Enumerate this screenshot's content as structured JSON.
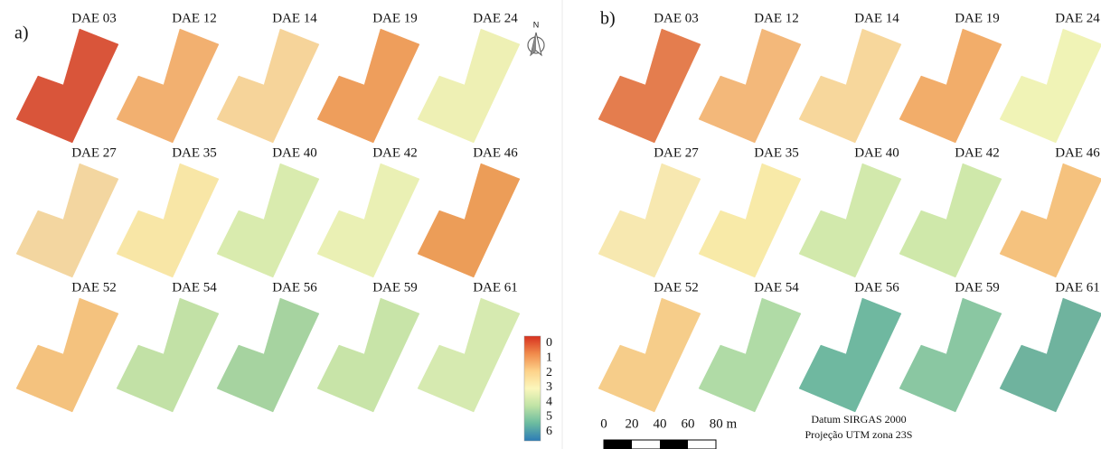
{
  "panels": [
    {
      "label": "a)",
      "maps": [
        {
          "label": "DAE 03",
          "color": "#d9553a"
        },
        {
          "label": "DAE 12",
          "color": "#f2b070"
        },
        {
          "label": "DAE 14",
          "color": "#f6d49a"
        },
        {
          "label": "DAE 19",
          "color": "#ee9e5c"
        },
        {
          "label": "DAE 24",
          "color": "#eef0b4"
        },
        {
          "label": "DAE 27",
          "color": "#f3d6a0"
        },
        {
          "label": "DAE 35",
          "color": "#f8e6a6"
        },
        {
          "label": "DAE 40",
          "color": "#d9ebae"
        },
        {
          "label": "DAE 42",
          "color": "#eaf0b4"
        },
        {
          "label": "DAE 46",
          "color": "#ec9d58"
        },
        {
          "label": "DAE 52",
          "color": "#f4c27e"
        },
        {
          "label": "DAE 54",
          "color": "#c2e1a6"
        },
        {
          "label": "DAE 56",
          "color": "#a6d3a0"
        },
        {
          "label": "DAE 59",
          "color": "#c8e4a8"
        },
        {
          "label": "DAE 61",
          "color": "#d6eab0"
        }
      ]
    },
    {
      "label": "b)",
      "maps": [
        {
          "label": "DAE 03",
          "color": "#e47d4e"
        },
        {
          "label": "DAE 12",
          "color": "#f3b87a"
        },
        {
          "label": "DAE 14",
          "color": "#f7d79c"
        },
        {
          "label": "DAE 19",
          "color": "#f2ad6a"
        },
        {
          "label": "DAE 24",
          "color": "#f0f3b6"
        },
        {
          "label": "DAE 27",
          "color": "#f7e8b0"
        },
        {
          "label": "DAE 35",
          "color": "#f8eaa8"
        },
        {
          "label": "DAE 40",
          "color": "#d2e9ac"
        },
        {
          "label": "DAE 42",
          "color": "#cfe8aa"
        },
        {
          "label": "DAE 46",
          "color": "#f5c27e"
        },
        {
          "label": "DAE 52",
          "color": "#f6cd8a"
        },
        {
          "label": "DAE 54",
          "color": "#b0dba6"
        },
        {
          "label": "DAE 56",
          "color": "#6fb8a0"
        },
        {
          "label": "DAE 59",
          "color": "#8ac7a2"
        },
        {
          "label": "DAE 61",
          "color": "#6fb39e"
        }
      ]
    }
  ],
  "north": "N",
  "colorbar": {
    "labels": [
      "0",
      "1",
      "2",
      "3",
      "4",
      "5",
      "6"
    ],
    "colors": [
      "#d7301f",
      "#f08a4b",
      "#fdd28a",
      "#fbf7bc",
      "#bfe3a5",
      "#6bbba0",
      "#2c7bb6"
    ]
  },
  "scalebar": {
    "labels": [
      "0",
      "20",
      "40",
      "60",
      "80 m"
    ]
  },
  "datum": [
    "Datum SIRGAS 2000",
    "Projeção UTM zona 23S"
  ]
}
